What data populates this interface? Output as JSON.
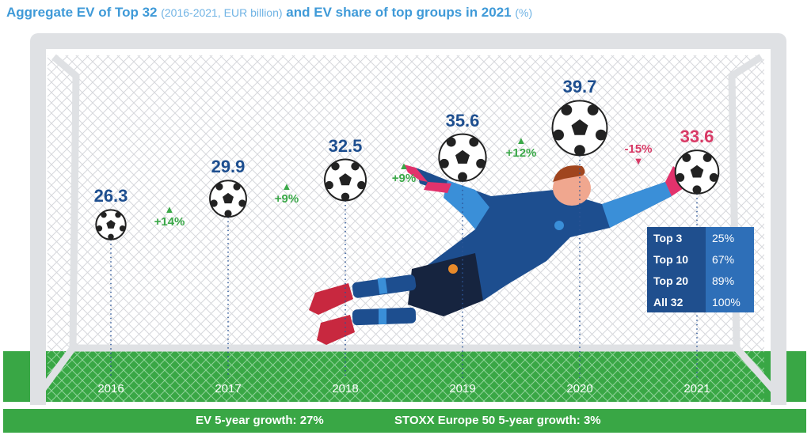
{
  "title": {
    "part1": "Aggregate EV of Top 32",
    "part2": "(2016-2021, EUR billion)",
    "part3": "and EV share of top groups in 2021",
    "part4": "(%)"
  },
  "chart_data": {
    "type": "scatter",
    "categories": [
      "2016",
      "2017",
      "2018",
      "2019",
      "2020",
      "2021"
    ],
    "values": [
      26.3,
      29.9,
      32.5,
      35.6,
      39.7,
      33.6
    ],
    "value_labels": [
      "26.3",
      "29.9",
      "32.5",
      "35.6",
      "39.7",
      "33.6"
    ],
    "growth_labels": [
      "+14%",
      "+9%",
      "+9%",
      "+12%",
      "-15%"
    ],
    "growth_direction": [
      "up",
      "up",
      "up",
      "up",
      "down"
    ],
    "ylim": [
      24,
      41
    ],
    "colors": {
      "value": "#1d4e8f",
      "negative": "#d83a66",
      "growth": "#3aa848"
    }
  },
  "share_table": [
    {
      "label": "Top 3",
      "value": "25%"
    },
    {
      "label": "Top 10",
      "value": "67%"
    },
    {
      "label": "Top 20",
      "value": "89%"
    },
    {
      "label": "All 32",
      "value": "100%"
    }
  ],
  "footer": {
    "ev_growth": "EV 5-year growth: 27%",
    "stoxx_growth": "STOXX Europe 50 5-year growth: 3%"
  },
  "colors": {
    "grass": "#39a745",
    "goal_frame": "#dfe1e4",
    "table_bg": "#2e6fb8"
  }
}
